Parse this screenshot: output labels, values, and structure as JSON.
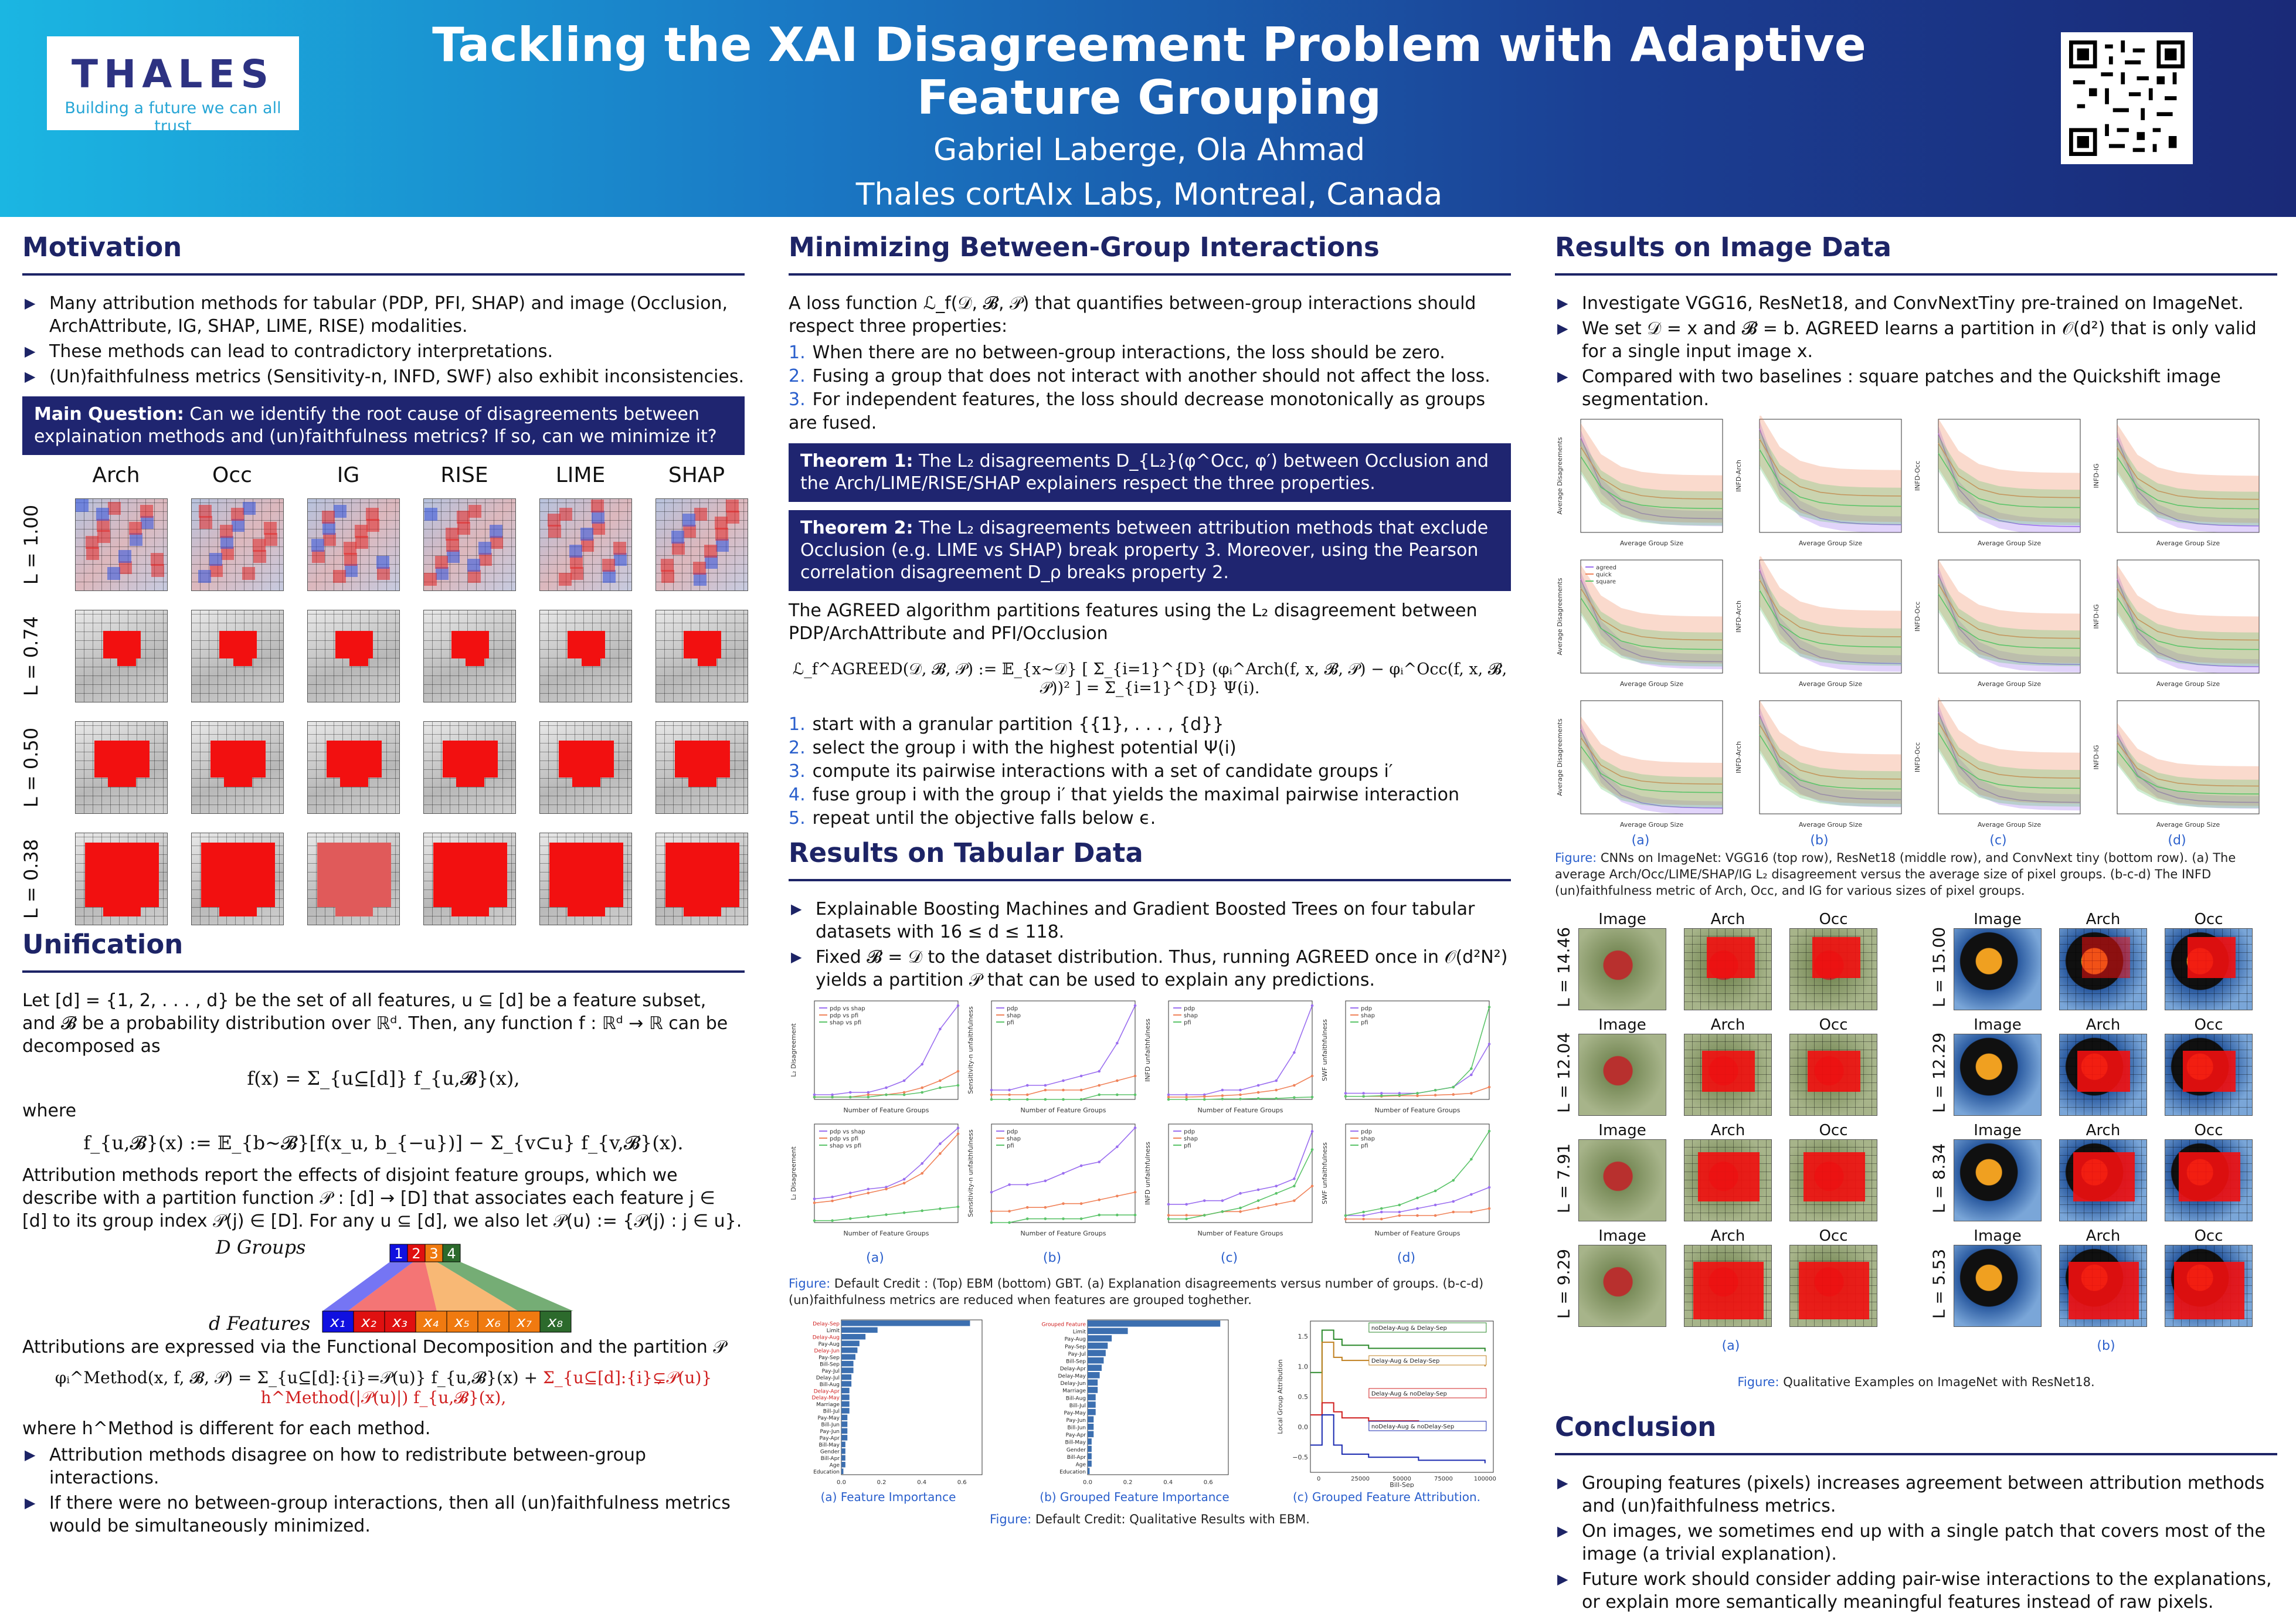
{
  "header": {
    "title": "Tackling the XAI Disagreement Problem with Adaptive Feature Grouping",
    "authors": "Gabriel Laberge, Ola Ahmad",
    "affiliation": "Thales cortAIx Labs, Montreal, Canada",
    "logo_text": "THALES",
    "logo_tagline": "Building a future we can all trust"
  },
  "motivation": {
    "heading": "Motivation",
    "bullets": [
      "Many attribution methods for tabular (PDP, PFI, SHAP) and image (Occlusion, ArchAttribute, IG, SHAP, LIME, RISE) modalities.",
      "These methods can lead to contradictory interpretations.",
      "(Un)faithfulness metrics (Sensitivity-n, INFD, SWF) also exhibit inconsistencies."
    ],
    "question_label": "Main Question:",
    "question": "Can we identify the root cause of disagreements between explaination methods and (un)faithfulness metrics? If so, can we minimize it?",
    "methods": [
      "Arch",
      "Occ",
      "IG",
      "RISE",
      "LIME",
      "SHAP"
    ],
    "rows": [
      "L = 1.00",
      "L = 0.74",
      "L = 0.50",
      "L = 0.38"
    ]
  },
  "unification": {
    "heading": "Unification",
    "p1": "Let [d] = {1, 2, . . . , d} be the set of all features, u ⊆ [d] be a feature subset, and 𝓑 be a probability distribution over ℝᵈ. Then, any function f : ℝᵈ → ℝ can be decomposed as",
    "eq1": "f(x) = Σ_{u⊆[d]} f_{u,𝓑}(x),",
    "where": "where",
    "eq2": "f_{u,𝓑}(x) := 𝔼_{b∼𝓑}[f(x_u, b_{−u})] − Σ_{v⊂u} f_{v,𝓑}(x).",
    "p2": "Attribution methods report the effects of disjoint feature groups, which we describe with a partition function 𝒫 : [d] → [D] that associates each feature j ∈ [d] to its group index 𝒫(j) ∈ [D]. For any u ⊆ [d], we also let 𝒫(u) := {𝒫(j) : j ∈ u}.",
    "groups_label": "D Groups",
    "features_label": "d Features",
    "group_ids": [
      "1",
      "2",
      "3",
      "4"
    ],
    "feature_ids": [
      "x₁",
      "x₂",
      "x₃",
      "x₄",
      "x₅",
      "x₆",
      "x₇",
      "x₈"
    ],
    "p3": "Attributions are expressed via the Functional Decomposition and the partition 𝒫",
    "eq3a": "φᵢ^Method(x, f, 𝓑, 𝒫) = Σ_{u⊆[d]:{i}=𝒫(u)} f_{u,𝓑}(x) +",
    "eq3b": "Σ_{u⊆[d]:{i}⊊𝒫(u)} h^Method(|𝒫(u)|) f_{u,𝓑}(x),",
    "p4": "where h^Method is different for each method.",
    "bullets": [
      "Attribution methods disagree on how to redistribute between-group interactions.",
      "If there were no between-group interactions, then all (un)faithfulness metrics would be simultaneously minimized."
    ]
  },
  "minimizing": {
    "heading": "Minimizing Between-Group Interactions",
    "intro": "A loss function ℒ_f(𝒟, 𝓑, 𝒫) that quantifies between-group interactions should respect three properties:",
    "props": [
      "When there are no between-group interactions, the loss should be zero.",
      "Fusing a group that does not interact with another should not affect the loss.",
      "For independent features, the loss should decrease monotonically as groups are fused."
    ],
    "thm1_label": "Theorem 1:",
    "thm1": "The L₂ disagreements D_{L₂}(φ^Occ, φ′) between Occlusion and the Arch/LIME/RISE/SHAP explainers respect the three properties.",
    "thm2_label": "Theorem 2:",
    "thm2": "The L₂ disagreements between attribution methods that exclude Occlusion (e.g. LIME vs SHAP) break property 3. Moreover, using the Pearson correlation disagreement D_ρ breaks property 2.",
    "p1": "The AGREED algorithm partitions features using the L₂ disagreement between PDP/ArchAttribute and PFI/Occlusion",
    "eq": "ℒ_f^AGREED(𝒟, 𝓑, 𝒫) := 𝔼_{x∼𝒟} [ Σ_{i=1}^{D} (φᵢ^Arch(f, x, 𝓑, 𝒫) − φᵢ^Occ(f, x, 𝓑, 𝒫))² ] = Σ_{i=1}^{D} Ψ(i).",
    "steps": [
      "start with a granular partition {{1}, . . . , {d}}",
      "select the group i with the highest potential Ψ(i)",
      "compute its pairwise interactions with a set of candidate groups i′",
      "fuse group i with the group i′ that yields the maximal pairwise interaction",
      "repeat until the objective falls below ϵ."
    ]
  },
  "tabular": {
    "heading": "Results on Tabular Data",
    "bullets": [
      "Explainable Boosting Machines and Gradient Boosted Trees on four tabular datasets with 16 ≤ d ≤ 118.",
      "Fixed 𝓑 = 𝒟 to the dataset distribution. Thus, running AGREED once in 𝒪(d²N²) yields a partition 𝒫 that can be used to explain any predictions."
    ],
    "sublabels": [
      "(a)",
      "(b)",
      "(c)",
      "(d)"
    ],
    "xlabel": "Number of Feature Groups",
    "ylabels": [
      "L₂ Disagreement",
      "Sensitivity-n unfaithfulness",
      "INFD unfaithfulness",
      "SWF unfaithfulness"
    ],
    "legend_a": [
      "pdp vs shap",
      "pdp vs pfi",
      "shap vs pfi"
    ],
    "legend_b": [
      "pdp",
      "shap",
      "pfi"
    ],
    "caption_label": "Figure:",
    "caption": "Default Credit : (Top) EBM (bottom) GBT. (a) Explanation disagreements versus number of groups. (b-c-d) (un)faithfulness metrics are reduced when features are grouped toghether.",
    "fig2_labels": [
      "(a) Feature Importance",
      "(b) Grouped Feature Importance",
      "(c) Grouped Feature Attribution."
    ],
    "fig2_caption": "Default Credit: Qualitative Results with EBM.",
    "fi_xticks": [
      "0.0",
      "0.2",
      "0.4",
      "0.6"
    ],
    "fi_features": [
      "Delay-Sep",
      "Limit",
      "Delay-Aug",
      "Pay-Aug",
      "Delay-Jun",
      "Pay-Sep",
      "Bill-Sep",
      "Pay-Jul",
      "Delay-Jul",
      "Bill-Aug",
      "Delay-Apr",
      "Delay-May",
      "Marriage",
      "Bill-Jul",
      "Pay-May",
      "Bill-Jun",
      "Pay-Jun",
      "Pay-Apr",
      "Bill-May",
      "Gender",
      "Bill-Apr",
      "Age",
      "Education"
    ],
    "gfi_features": [
      "Grouped Feature",
      "Limit",
      "Pay-Aug",
      "Pay-Sep",
      "Pay-Jul",
      "Bill-Sep",
      "Delay-Apr",
      "Delay-May",
      "Delay-Jun",
      "Marriage",
      "Bill-Aug",
      "Bill-Jul",
      "Pay-May",
      "Pay-Jun",
      "Bill-Jun",
      "Pay-Apr",
      "Bill-May",
      "Gender",
      "Bill-Apr",
      "Age",
      "Education"
    ],
    "gfa_ylabel": "Local Group Attribution",
    "gfa_xlabel": "Bill-Sep",
    "gfa_xticks": [
      "0",
      "25000",
      "50000",
      "75000",
      "100000"
    ],
    "gfa_yticks": [
      "1.5",
      "1.0",
      "0.5",
      "0.0",
      "−0.5"
    ],
    "gfa_legend": [
      "noDelay-Aug & Delay-Sep",
      "Delay-Aug & Delay-Sep",
      "Delay-Aug & noDelay-Sep",
      "noDelay-Aug & noDelay-Sep"
    ]
  },
  "image": {
    "heading": "Results on Image Data",
    "bullets": [
      "Investigate VGG16, ResNet18, and ConvNextTiny pre-trained on ImageNet.",
      "We set 𝒟 = x and 𝓑 = b. AGREED learns a partition in 𝒪(d²) that is only valid for a single input image x.",
      "Compared with two baselines : square patches and the Quickshift image segmentation."
    ],
    "xlabel": "Average Group Size",
    "ylabels": [
      "Average Disagreements",
      "INFD-Arch",
      "INFD-Occ",
      "INFD-IG"
    ],
    "legend": [
      "agreed",
      "quick",
      "square"
    ],
    "sublabels": [
      "(a)",
      "(b)",
      "(c)",
      "(d)"
    ],
    "caption_label": "Figure:",
    "caption": "CNNs on ImageNet: VGG16 (top row), ResNet18 (middle row), and ConvNext tiny (bottom row). (a) The average Arch/Occ/LIME/SHAP/IG L₂ disagreement versus the average size of pixel groups. (b-c-d) The INFD (un)faithfulness metric of Arch, Occ, and IG for various sizes of pixel groups.",
    "qual_cols": [
      "Image",
      "Arch",
      "Occ"
    ],
    "qual_rows_a": [
      "L = 14.46",
      "L = 12.04",
      "L = 7.91",
      "L = 9.29"
    ],
    "qual_rows_b": [
      "L = 15.00",
      "L = 12.29",
      "L = 8.34",
      "L = 5.53"
    ],
    "qual_sub": [
      "(a)",
      "(b)"
    ],
    "qual_caption_label": "Figure:",
    "qual_caption": "Qualitative Examples on ImageNet with ResNet18."
  },
  "conclusion": {
    "heading": "Conclusion",
    "bullets": [
      "Grouping features (pixels) increases agreement between attribution methods and (un)faithfulness metrics.",
      "On images, we sometimes end up with a single patch that covers most of the image (a trivial explanation).",
      "Future work should consider adding pair-wise interactions to the explanations, or explain more semantically meaningful features instead of raw pixels."
    ]
  },
  "colors": {
    "header_dark": "#1a2a78",
    "header_light": "#1bb6e2",
    "section": "#1d2466",
    "box": "#1f2570",
    "mask": "#f21010",
    "agreed": "#9b6ff0",
    "quick": "#f0835a",
    "square": "#5cc46a"
  }
}
